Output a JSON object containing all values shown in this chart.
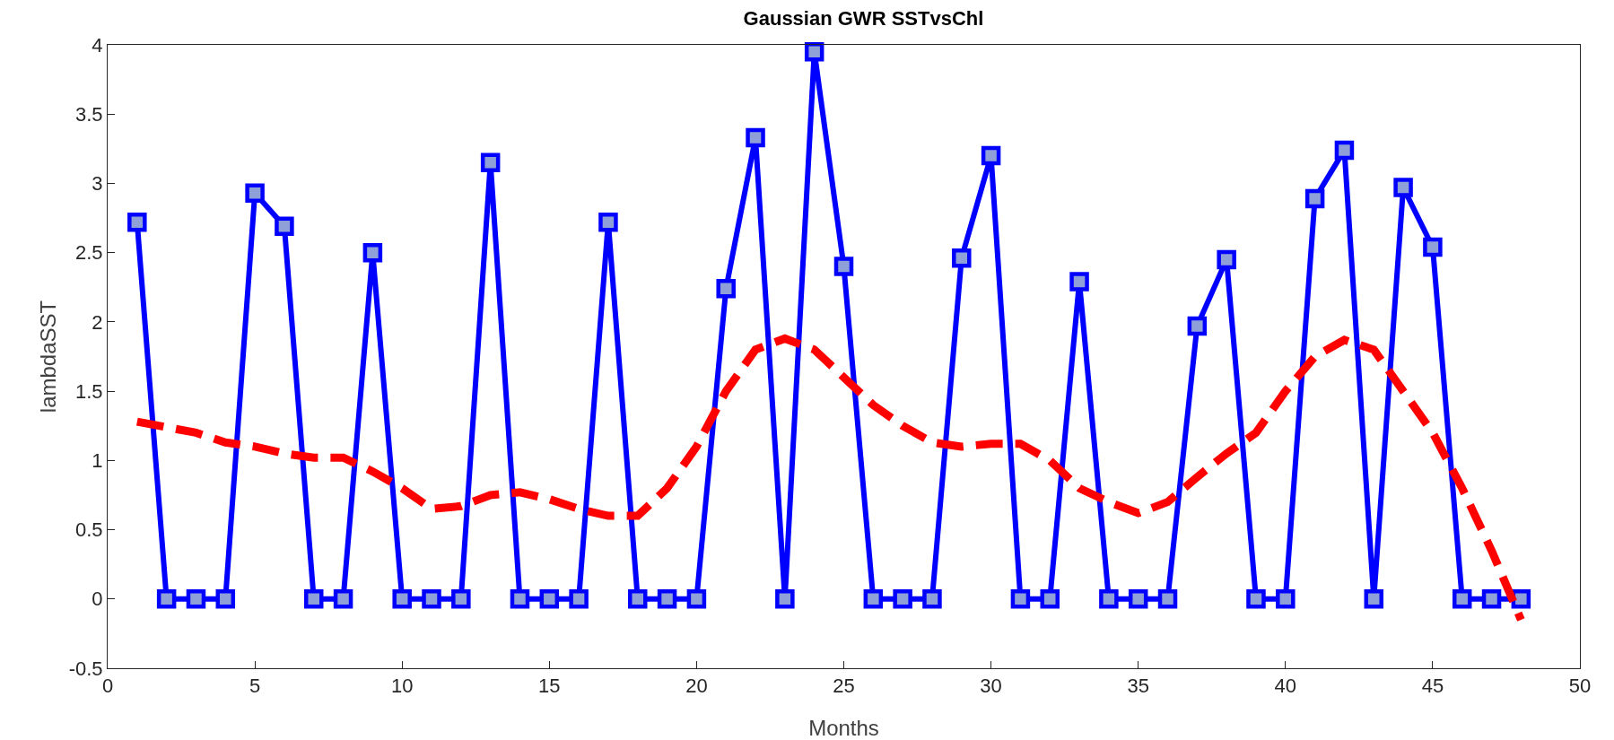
{
  "chart_data": {
    "type": "line",
    "title": "Gaussian GWR SSTvsChl",
    "xlabel": "Months",
    "ylabel": "lambdaSST",
    "x": [
      1,
      2,
      3,
      4,
      5,
      6,
      7,
      8,
      9,
      10,
      11,
      12,
      13,
      14,
      15,
      16,
      17,
      18,
      19,
      20,
      21,
      22,
      23,
      24,
      25,
      26,
      27,
      28,
      29,
      30,
      31,
      32,
      33,
      34,
      35,
      36,
      37,
      38,
      39,
      40,
      41,
      42,
      43,
      44,
      45,
      46,
      47,
      48
    ],
    "series": [
      {
        "color": "#0000ff",
        "marker": "square",
        "line_style": "solid",
        "values": [
          2.72,
          0,
          0,
          0,
          2.93,
          2.69,
          0,
          0,
          2.5,
          0,
          0,
          0,
          3.15,
          0,
          0,
          0,
          2.72,
          0,
          0,
          0,
          2.24,
          3.33,
          0,
          3.95,
          2.4,
          0,
          0,
          0,
          2.46,
          3.2,
          0,
          0,
          2.29,
          0,
          0,
          0,
          1.97,
          2.45,
          0,
          0,
          2.89,
          3.24,
          0,
          2.97,
          2.54,
          0,
          0,
          0
        ]
      },
      {
        "color": "#ff0000",
        "marker": "none",
        "line_style": "dashed",
        "values": [
          1.28,
          1.24,
          1.2,
          1.13,
          1.1,
          1.05,
          1.02,
          1.02,
          0.92,
          0.8,
          0.65,
          0.67,
          0.75,
          0.77,
          0.72,
          0.65,
          0.6,
          0.6,
          0.8,
          1.1,
          1.5,
          1.8,
          1.88,
          1.8,
          1.6,
          1.4,
          1.25,
          1.13,
          1.1,
          1.12,
          1.12,
          1.0,
          0.8,
          0.7,
          0.62,
          0.7,
          0.88,
          1.05,
          1.2,
          1.5,
          1.75,
          1.87,
          1.8,
          1.5,
          1.2,
          0.8,
          0.35,
          -0.15
        ]
      }
    ],
    "xlim": [
      0,
      50
    ],
    "xticks": [
      0,
      5,
      10,
      15,
      20,
      25,
      30,
      35,
      40,
      45,
      50
    ],
    "ylim": [
      -0.5,
      4
    ],
    "yticks": [
      -0.5,
      0,
      0.5,
      1,
      1.5,
      2,
      2.5,
      3,
      3.5,
      4
    ]
  }
}
